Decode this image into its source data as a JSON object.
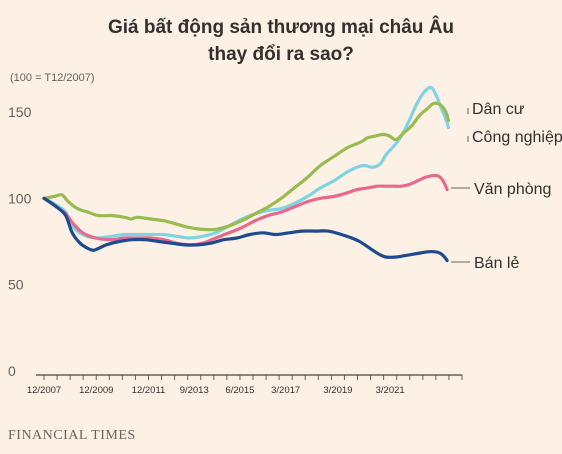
{
  "chart_data": {
    "type": "line",
    "title": "Giá bất động sản thương mại châu Âu thay đổi ra sao?",
    "title_lines": [
      "Giá bất động sản thương mại châu Âu",
      "thay đổi ra sao?"
    ],
    "subtitle": "(100 = T12/2007)",
    "ylim": [
      0,
      165
    ],
    "yticks": [
      0,
      50,
      100,
      150
    ],
    "x_range": [
      2007.92,
      2023.92
    ],
    "xticks": [
      {
        "label": "12/2007",
        "value": 2007.92
      },
      {
        "label": "12/2009",
        "value": 2009.92
      },
      {
        "label": "12/2011",
        "value": 2011.92
      },
      {
        "label": "9/2013",
        "value": 2013.67
      },
      {
        "label": "6/2015",
        "value": 2015.42
      },
      {
        "label": "3/2017",
        "value": 2017.17
      },
      {
        "label": "3/2019",
        "value": 2019.17
      },
      {
        "label": "3/2021",
        "value": 2021.17
      }
    ],
    "grid": false,
    "legend": "direct labels at line ends (right)",
    "colors": {
      "Dân cư": "#7fd3e4",
      "Công nghiệp": "#98bc4f",
      "Văn phòng": "#e8698d",
      "Bán lẻ": "#1f4a8e"
    },
    "series": [
      {
        "name": "Dân cư",
        "x": [
          2007.92,
          2008.4,
          2008.75,
          2009.0,
          2009.4,
          2009.9,
          2010.5,
          2011.0,
          2011.5,
          2012.0,
          2012.5,
          2013.0,
          2013.5,
          2014.0,
          2014.5,
          2015.0,
          2015.5,
          2016.0,
          2016.5,
          2017.0,
          2017.5,
          2018.0,
          2018.5,
          2019.0,
          2019.5,
          2019.9,
          2020.2,
          2020.5,
          2020.8,
          2021.0,
          2021.3,
          2021.6,
          2021.9,
          2022.2,
          2022.5,
          2022.75,
          2022.95,
          2023.1,
          2023.3,
          2023.4
        ],
        "values": [
          100,
          96,
          92,
          84,
          79,
          77,
          78,
          79,
          79,
          79,
          79,
          78,
          77,
          78,
          80,
          84,
          88,
          91,
          93,
          94,
          97,
          101,
          106,
          110,
          115,
          118,
          119,
          118,
          120,
          125,
          130,
          136,
          145,
          155,
          162,
          164,
          159,
          153,
          146,
          141
        ]
      },
      {
        "name": "Công nghiệp",
        "x": [
          2007.92,
          2008.3,
          2008.6,
          2008.85,
          2009.2,
          2009.6,
          2010.0,
          2010.5,
          2011.0,
          2011.25,
          2011.5,
          2012.0,
          2012.5,
          2013.0,
          2013.5,
          2014.0,
          2014.5,
          2015.0,
          2015.5,
          2016.0,
          2016.5,
          2017.0,
          2017.5,
          2018.0,
          2018.5,
          2019.0,
          2019.5,
          2019.8,
          2020.1,
          2020.3,
          2020.6,
          2020.9,
          2021.15,
          2021.4,
          2021.7,
          2022.0,
          2022.3,
          2022.6,
          2022.85,
          2023.1,
          2023.3,
          2023.4
        ],
        "values": [
          100,
          101,
          102,
          98,
          94,
          92,
          90,
          90,
          89,
          88,
          89,
          88,
          87,
          85,
          83,
          82,
          82,
          84,
          87,
          91,
          95,
          100,
          106,
          112,
          119,
          124,
          129,
          131,
          133,
          135,
          136,
          137,
          136,
          134,
          138,
          142,
          148,
          152,
          155,
          154,
          150,
          145
        ]
      },
      {
        "name": "Văn phòng",
        "x": [
          2007.92,
          2008.4,
          2008.75,
          2009.0,
          2009.4,
          2009.9,
          2010.5,
          2011.0,
          2011.5,
          2012.0,
          2012.5,
          2013.0,
          2013.5,
          2014.0,
          2014.5,
          2015.0,
          2015.5,
          2016.0,
          2016.5,
          2017.0,
          2017.5,
          2018.0,
          2018.5,
          2019.0,
          2019.5,
          2019.9,
          2020.3,
          2020.7,
          2021.0,
          2021.3,
          2021.6,
          2021.9,
          2022.2,
          2022.5,
          2022.75,
          2023.0,
          2023.2,
          2023.35
        ],
        "values": [
          100,
          95,
          91,
          86,
          80,
          77,
          76,
          77,
          77,
          77,
          76,
          74,
          73,
          74,
          77,
          80,
          83,
          87,
          90,
          92,
          95,
          98,
          100,
          101,
          103,
          105,
          106,
          107,
          107,
          107,
          107,
          108,
          110,
          112,
          113,
          113,
          110,
          105
        ]
      },
      {
        "name": "Bán lẻ",
        "x": [
          2007.92,
          2008.4,
          2008.75,
          2009.0,
          2009.3,
          2009.6,
          2009.85,
          2010.3,
          2010.8,
          2011.3,
          2011.8,
          2012.3,
          2012.8,
          2013.3,
          2013.8,
          2014.3,
          2014.8,
          2015.3,
          2015.8,
          2016.3,
          2016.8,
          2017.3,
          2017.8,
          2018.3,
          2018.8,
          2019.3,
          2019.7,
          2020.0,
          2020.3,
          2020.7,
          2021.0,
          2021.4,
          2021.8,
          2022.2,
          2022.6,
          2022.9,
          2023.1,
          2023.25,
          2023.35
        ],
        "values": [
          100,
          95,
          90,
          80,
          74,
          71,
          70,
          73,
          75,
          76,
          76,
          75,
          74,
          73,
          73,
          74,
          76,
          77,
          79,
          80,
          79,
          80,
          81,
          81,
          81,
          79,
          77,
          75,
          72,
          68,
          66,
          66,
          67,
          68,
          69,
          69,
          68,
          66,
          64
        ]
      }
    ],
    "line_labels": [
      {
        "series": "Dân cư",
        "text": "Dân cư"
      },
      {
        "series": "Công nghiệp",
        "text": "Công nghiệp"
      },
      {
        "series": "Văn phòng",
        "text": "Văn phòng"
      },
      {
        "series": "Bán lẻ",
        "text": "Bán lẻ"
      }
    ]
  },
  "source": "FINANCIAL TIMES"
}
